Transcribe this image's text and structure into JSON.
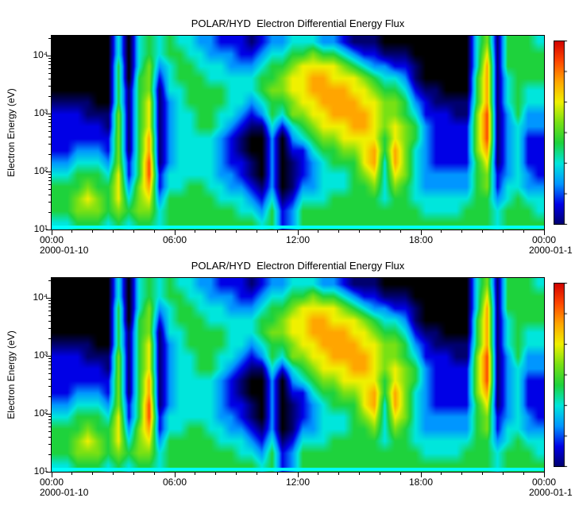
{
  "figure": {
    "background": "#ffffff"
  },
  "chart_data": {
    "type": "heatmap",
    "panels": [
      {
        "title": "POLAR/HYD  Electron Differential Energy Flux",
        "date_left": "2000-01-10",
        "date_right": "2000-01-1"
      },
      {
        "title": "POLAR/HYD  Electron Differential Energy Flux",
        "date_left": "2000-01-10",
        "date_right": "2000-01-1"
      }
    ],
    "ylabel": "Electron Energy (eV)",
    "x_ticks": [
      {
        "t": "00:00",
        "h": 0
      },
      {
        "t": "06:00",
        "h": 6
      },
      {
        "t": "12:00",
        "h": 12
      },
      {
        "t": "18:00",
        "h": 18
      },
      {
        "t": "00:00",
        "h": 24
      }
    ],
    "y_ticks": [
      {
        "t": "10¹",
        "log": 1
      },
      {
        "t": "10²",
        "log": 2
      },
      {
        "t": "10³",
        "log": 3
      },
      {
        "t": "10⁴",
        "log": 4
      }
    ],
    "x_range_hours": [
      0,
      24
    ],
    "y_log_range": [
      1,
      4.35
    ],
    "legend_position": "right-colorbar",
    "grid_lines": false,
    "colormap_stops": [
      [
        0.0,
        "#000000"
      ],
      [
        0.1,
        "#00006e"
      ],
      [
        0.2,
        "#0000e6"
      ],
      [
        0.3,
        "#0096ff"
      ],
      [
        0.4,
        "#00e6dc"
      ],
      [
        0.5,
        "#1ed23c"
      ],
      [
        0.6,
        "#78e114"
      ],
      [
        0.7,
        "#f0f000"
      ],
      [
        0.8,
        "#ffa500"
      ],
      [
        0.9,
        "#ff4600"
      ],
      [
        1.0,
        "#d20000"
      ]
    ],
    "bottom_strip_color": "#00ffff",
    "grid": {
      "cols": 48,
      "rows": 16,
      "value_range": [
        0,
        10
      ],
      "rows_order": "bottom-to-top",
      "values": [
        [
          4,
          5,
          5,
          5,
          4,
          3,
          2,
          2,
          2,
          2,
          1,
          0,
          0,
          0,
          0,
          0
        ],
        [
          4,
          5,
          5,
          5,
          4,
          3,
          2,
          2,
          2,
          2,
          1,
          0,
          0,
          0,
          0,
          0
        ],
        [
          5,
          6,
          6,
          5,
          5,
          4,
          3,
          2,
          2,
          2,
          1,
          0,
          0,
          0,
          0,
          0
        ],
        [
          5,
          6,
          7,
          6,
          5,
          4,
          3,
          2,
          2,
          1,
          1,
          0,
          0,
          0,
          0,
          0
        ],
        [
          5,
          6,
          6,
          5,
          5,
          4,
          3,
          2,
          2,
          1,
          0,
          0,
          0,
          0,
          0,
          0
        ],
        [
          4,
          5,
          5,
          5,
          4,
          3,
          2,
          2,
          1,
          1,
          0,
          0,
          0,
          0,
          0,
          0
        ],
        [
          5,
          6,
          7,
          7,
          7,
          6,
          6,
          6,
          6,
          6,
          5,
          5,
          5,
          5,
          4,
          4
        ],
        [
          4,
          5,
          4,
          3,
          2,
          2,
          1,
          1,
          1,
          1,
          1,
          1,
          0,
          0,
          0,
          0
        ],
        [
          5,
          6,
          6,
          6,
          5,
          5,
          5,
          5,
          5,
          5,
          5,
          5,
          5,
          4,
          4,
          4
        ],
        [
          5,
          6,
          7,
          8,
          9,
          9,
          8,
          8,
          7,
          7,
          7,
          6,
          6,
          6,
          5,
          5
        ],
        [
          4,
          4,
          3,
          2,
          2,
          1,
          1,
          1,
          1,
          1,
          1,
          1,
          2,
          3,
          4,
          4
        ],
        [
          5,
          5,
          5,
          4,
          4,
          3,
          3,
          3,
          3,
          3,
          3,
          4,
          4,
          4,
          5,
          5
        ],
        [
          5,
          5,
          5,
          4,
          4,
          4,
          4,
          4,
          4,
          4,
          4,
          4,
          5,
          5,
          5,
          4
        ],
        [
          5,
          5,
          5,
          5,
          4,
          4,
          4,
          4,
          4,
          4,
          5,
          5,
          5,
          5,
          4,
          4
        ],
        [
          5,
          5,
          5,
          5,
          4,
          4,
          4,
          4,
          5,
          5,
          5,
          5,
          5,
          4,
          4,
          3
        ],
        [
          5,
          5,
          5,
          4,
          4,
          4,
          4,
          4,
          5,
          5,
          5,
          5,
          4,
          4,
          3,
          3
        ],
        [
          5,
          5,
          4,
          4,
          3,
          3,
          3,
          3,
          4,
          4,
          5,
          5,
          4,
          4,
          3,
          2
        ],
        [
          5,
          5,
          4,
          3,
          3,
          2,
          2,
          2,
          3,
          4,
          4,
          4,
          4,
          3,
          3,
          2
        ],
        [
          5,
          4,
          4,
          3,
          2,
          2,
          1,
          1,
          2,
          3,
          4,
          4,
          4,
          3,
          2,
          2
        ],
        [
          5,
          4,
          3,
          2,
          1,
          1,
          0,
          0,
          1,
          2,
          3,
          4,
          4,
          3,
          2,
          1
        ],
        [
          4,
          3,
          2,
          1,
          0,
          0,
          0,
          0,
          1,
          3,
          4,
          5,
          5,
          4,
          3,
          2
        ],
        [
          5,
          5,
          4,
          3,
          3,
          3,
          3,
          3,
          4,
          5,
          5,
          6,
          5,
          5,
          4,
          3
        ],
        [
          2,
          2,
          1,
          0,
          0,
          0,
          0,
          0,
          2,
          4,
          5,
          6,
          6,
          5,
          4,
          3
        ],
        [
          3,
          3,
          2,
          1,
          1,
          1,
          2,
          3,
          4,
          6,
          6,
          7,
          7,
          6,
          5,
          4
        ],
        [
          5,
          5,
          4,
          3,
          2,
          2,
          2,
          4,
          5,
          6,
          7,
          7,
          7,
          7,
          5,
          4
        ],
        [
          5,
          5,
          4,
          3,
          3,
          3,
          4,
          5,
          6,
          7,
          7,
          8,
          8,
          7,
          6,
          4
        ],
        [
          5,
          5,
          4,
          4,
          4,
          4,
          5,
          6,
          7,
          7,
          8,
          8,
          8,
          7,
          5,
          3
        ],
        [
          5,
          5,
          5,
          4,
          4,
          5,
          5,
          6,
          7,
          8,
          8,
          8,
          7,
          7,
          5,
          3
        ],
        [
          5,
          5,
          5,
          4,
          4,
          5,
          6,
          7,
          7,
          8,
          8,
          8,
          7,
          6,
          4,
          2
        ],
        [
          5,
          5,
          5,
          5,
          5,
          5,
          6,
          7,
          8,
          8,
          8,
          7,
          7,
          5,
          3,
          1
        ],
        [
          5,
          5,
          5,
          5,
          6,
          7,
          7,
          7,
          8,
          8,
          7,
          7,
          6,
          4,
          2,
          1
        ],
        [
          5,
          5,
          5,
          6,
          7,
          8,
          8,
          7,
          7,
          7,
          7,
          6,
          5,
          3,
          2,
          1
        ],
        [
          5,
          5,
          4,
          4,
          4,
          4,
          5,
          5,
          6,
          6,
          6,
          5,
          4,
          3,
          1,
          0
        ],
        [
          5,
          5,
          5,
          6,
          7,
          8,
          8,
          7,
          7,
          6,
          6,
          5,
          4,
          2,
          1,
          0
        ],
        [
          5,
          5,
          5,
          5,
          6,
          6,
          6,
          6,
          6,
          5,
          5,
          4,
          3,
          2,
          1,
          0
        ],
        [
          5,
          5,
          4,
          4,
          4,
          4,
          4,
          5,
          5,
          4,
          3,
          2,
          1,
          1,
          0,
          0
        ],
        [
          5,
          4,
          4,
          3,
          3,
          3,
          3,
          3,
          3,
          2,
          2,
          1,
          0,
          0,
          0,
          0
        ],
        [
          5,
          4,
          4,
          3,
          3,
          2,
          2,
          2,
          2,
          2,
          1,
          1,
          0,
          0,
          0,
          0
        ],
        [
          5,
          4,
          4,
          3,
          3,
          2,
          2,
          2,
          2,
          2,
          1,
          0,
          0,
          0,
          0,
          0
        ],
        [
          5,
          4,
          4,
          3,
          3,
          2,
          2,
          2,
          2,
          1,
          1,
          0,
          0,
          0,
          0,
          0
        ],
        [
          5,
          5,
          4,
          3,
          3,
          2,
          2,
          2,
          2,
          1,
          1,
          0,
          0,
          0,
          0,
          0
        ],
        [
          5,
          5,
          5,
          5,
          5,
          5,
          6,
          6,
          6,
          6,
          5,
          5,
          5,
          4,
          4,
          4
        ],
        [
          5,
          5,
          5,
          6,
          6,
          7,
          8,
          9,
          9,
          9,
          8,
          8,
          8,
          8,
          7,
          6
        ],
        [
          4,
          4,
          3,
          2,
          2,
          1,
          1,
          1,
          1,
          1,
          1,
          1,
          1,
          1,
          1,
          1
        ],
        [
          5,
          5,
          4,
          4,
          3,
          3,
          3,
          3,
          3,
          3,
          4,
          4,
          4,
          5,
          5,
          5
        ],
        [
          5,
          5,
          5,
          4,
          4,
          4,
          4,
          4,
          4,
          5,
          5,
          5,
          5,
          5,
          5,
          5
        ],
        [
          5,
          5,
          4,
          3,
          3,
          2,
          2,
          2,
          3,
          3,
          4,
          4,
          5,
          5,
          5,
          5
        ],
        [
          5,
          4,
          4,
          3,
          2,
          2,
          2,
          2,
          3,
          3,
          4,
          4,
          5,
          5,
          5,
          4
        ]
      ]
    }
  }
}
